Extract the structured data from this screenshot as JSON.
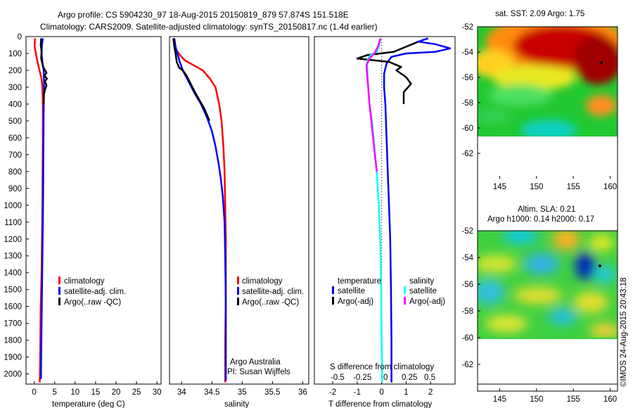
{
  "title_line1": "Argo profile: CS 5904230_97 18-Aug-2015 20150819_879 57.874S 151.518E",
  "title_line2": "Climatology: CARS2009. Satellite-adjusted climatology: synTS_20150817.nc (1.4d earlier)",
  "credit_lines": [
    "Argo Australia",
    "PI: Susan Wijffels"
  ],
  "watermark": "©IMOS 24-Aug-2015 20:43:18",
  "colors": {
    "climatology": "#ff0000",
    "satellite": "#0000ff",
    "argo": "#000000",
    "sat_salinity": "#00ffff",
    "argo_salinity": "#ff00ff"
  },
  "chart_data": [
    {
      "type": "line",
      "xlabel": "temperature (deg C)",
      "ylim": [
        2060,
        0
      ],
      "xlim": [
        -2,
        31
      ],
      "yticks": [
        0,
        100,
        200,
        300,
        400,
        500,
        600,
        700,
        800,
        900,
        1000,
        1100,
        1200,
        1300,
        1400,
        1500,
        1600,
        1700,
        1800,
        1900,
        2000
      ],
      "xticks": [
        0,
        5,
        10,
        15,
        20,
        25,
        30
      ],
      "legend": [
        "climatology",
        "satellite-adj. clim.",
        "Argo(..raw -QC)"
      ],
      "series": [
        {
          "name": "climatology",
          "color": "red",
          "points": [
            [
              0.2,
              10
            ],
            [
              0.1,
              60
            ],
            [
              0.4,
              100
            ],
            [
              0.8,
              150
            ],
            [
              1.3,
              200
            ],
            [
              1.8,
              250
            ],
            [
              2.0,
              300
            ],
            [
              2.1,
              400
            ],
            [
              2.1,
              600
            ],
            [
              2.05,
              800
            ],
            [
              2.0,
              1000
            ],
            [
              1.9,
              1200
            ],
            [
              1.8,
              1400
            ],
            [
              1.6,
              1600
            ],
            [
              1.5,
              1800
            ],
            [
              1.4,
              2000
            ],
            [
              1.35,
              2050
            ]
          ]
        },
        {
          "name": "satellite-adj. clim.",
          "color": "blue",
          "points": [
            [
              2.1,
              10
            ],
            [
              1.9,
              50
            ],
            [
              1.8,
              100
            ],
            [
              2.0,
              150
            ],
            [
              2.3,
              200
            ],
            [
              2.4,
              260
            ],
            [
              2.35,
              350
            ],
            [
              2.3,
              500
            ],
            [
              2.25,
              700
            ],
            [
              2.2,
              900
            ],
            [
              2.1,
              1100
            ],
            [
              2.0,
              1300
            ],
            [
              1.9,
              1500
            ],
            [
              1.8,
              1700
            ],
            [
              1.7,
              1900
            ],
            [
              1.65,
              2030
            ]
          ]
        },
        {
          "name": "Argo(..raw -QC)",
          "color": "black",
          "points": [
            [
              1.7,
              10
            ],
            [
              1.6,
              50
            ],
            [
              1.8,
              90
            ],
            [
              1.7,
              130
            ],
            [
              2.2,
              180
            ],
            [
              3.0,
              215
            ],
            [
              2.5,
              230
            ],
            [
              3.1,
              250
            ],
            [
              2.6,
              265
            ],
            [
              3.0,
              290
            ],
            [
              2.7,
              310
            ],
            [
              2.4,
              340
            ],
            [
              2.3,
              400
            ]
          ]
        }
      ]
    },
    {
      "type": "line",
      "xlabel": "salinity",
      "ylim": [
        2060,
        0
      ],
      "xlim": [
        33.8,
        36.1
      ],
      "xticks": [
        34,
        34.5,
        35,
        35.5,
        36
      ],
      "legend": [
        "climatology",
        "satellite-adj. clim.",
        "Argo(..raw -QC)"
      ],
      "series": [
        {
          "name": "climatology",
          "color": "red",
          "points": [
            [
              33.86,
              10
            ],
            [
              33.88,
              60
            ],
            [
              33.95,
              100
            ],
            [
              34.05,
              140
            ],
            [
              34.2,
              170
            ],
            [
              34.35,
              200
            ],
            [
              34.47,
              250
            ],
            [
              34.56,
              300
            ],
            [
              34.62,
              400
            ],
            [
              34.66,
              500
            ],
            [
              34.69,
              650
            ],
            [
              34.71,
              800
            ],
            [
              34.72,
              1000
            ],
            [
              34.73,
              1200
            ],
            [
              34.73,
              1500
            ],
            [
              34.72,
              1800
            ],
            [
              34.72,
              2050
            ]
          ]
        },
        {
          "name": "satellite-adj. clim.",
          "color": "blue",
          "points": [
            [
              33.88,
              10
            ],
            [
              33.9,
              60
            ],
            [
              33.93,
              100
            ],
            [
              33.97,
              150
            ],
            [
              34.02,
              200
            ],
            [
              34.12,
              270
            ],
            [
              34.22,
              340
            ],
            [
              34.32,
              400
            ],
            [
              34.42,
              480
            ],
            [
              34.5,
              560
            ],
            [
              34.56,
              650
            ],
            [
              34.61,
              750
            ],
            [
              34.65,
              850
            ],
            [
              34.68,
              950
            ],
            [
              34.71,
              1100
            ],
            [
              34.72,
              1300
            ],
            [
              34.73,
              1600
            ],
            [
              34.73,
              1900
            ],
            [
              34.73,
              2040
            ]
          ]
        },
        {
          "name": "Argo(..raw -QC)",
          "color": "black",
          "points": [
            [
              33.87,
              10
            ],
            [
              33.88,
              60
            ],
            [
              33.9,
              100
            ],
            [
              33.92,
              150
            ],
            [
              33.96,
              185
            ],
            [
              34.02,
              200
            ],
            [
              34.08,
              230
            ],
            [
              34.15,
              280
            ],
            [
              34.22,
              330
            ],
            [
              34.3,
              380
            ],
            [
              34.38,
              430
            ],
            [
              34.46,
              500
            ]
          ]
        }
      ]
    },
    {
      "type": "line",
      "xlabel": "T difference from climatology",
      "xlabel_top": "S difference from climatology",
      "ylim": [
        2060,
        0
      ],
      "xlim": [
        -2.75,
        3.0
      ],
      "xticks": [
        -2,
        -1,
        0,
        1,
        2
      ],
      "xticks_top": [
        "-0.5",
        "-0.25",
        "0",
        "0.25",
        "0.5"
      ],
      "legend_temperature": [
        "temperature",
        "satellite",
        "Argo(-adj)"
      ],
      "legend_salinity": [
        "salinity",
        "satellite",
        "Argo(-adj)"
      ],
      "series": [
        {
          "name": "satellite",
          "color": "blue",
          "points": [
            [
              1.9,
              10
            ],
            [
              1.5,
              30
            ],
            [
              2.2,
              45
            ],
            [
              2.8,
              70
            ],
            [
              2.2,
              90
            ],
            [
              1.0,
              100
            ],
            [
              0.4,
              120
            ],
            [
              0.2,
              160
            ],
            [
              0.1,
              220
            ],
            [
              0.1,
              300
            ],
            [
              0.15,
              400
            ],
            [
              0.2,
              600
            ],
            [
              0.25,
              800
            ],
            [
              0.3,
              1000
            ],
            [
              0.35,
              1200
            ],
            [
              0.38,
              1500
            ],
            [
              0.4,
              1800
            ],
            [
              0.4,
              2050
            ]
          ]
        },
        {
          "name": "Argo(-adj)",
          "color": "black",
          "points": [
            [
              1.5,
              30
            ],
            [
              0.5,
              90
            ],
            [
              -0.6,
              110
            ],
            [
              -1.0,
              130
            ],
            [
              0.3,
              150
            ],
            [
              0.8,
              180
            ],
            [
              0.6,
              200
            ],
            [
              1.0,
              240
            ],
            [
              1.2,
              280
            ],
            [
              0.9,
              330
            ],
            [
              0.9,
              400
            ]
          ]
        },
        {
          "name": "satellite",
          "color": "cyan",
          "points": [
            [
              -0.05,
              10
            ],
            [
              -0.1,
              50
            ],
            [
              -0.2,
              90
            ],
            [
              -0.45,
              110
            ],
            [
              -0.55,
              130
            ],
            [
              -0.6,
              160
            ],
            [
              -0.58,
              220
            ],
            [
              -0.55,
              300
            ],
            [
              -0.5,
              400
            ],
            [
              -0.4,
              500
            ],
            [
              -0.3,
              650
            ],
            [
              -0.2,
              800
            ],
            [
              -0.12,
              1000
            ],
            [
              -0.06,
              1200
            ],
            [
              -0.02,
              1500
            ],
            [
              0.0,
              1800
            ],
            [
              0.02,
              2050
            ]
          ]
        },
        {
          "name": "Argo(-adj)",
          "color": "magenta",
          "points": [
            [
              -0.05,
              10
            ],
            [
              -0.15,
              60
            ],
            [
              -0.3,
              100
            ],
            [
              -0.5,
              130
            ],
            [
              -0.62,
              170
            ],
            [
              -0.6,
              220
            ],
            [
              -0.55,
              300
            ],
            [
              -0.5,
              400
            ],
            [
              -0.42,
              500
            ],
            [
              -0.35,
              600
            ],
            [
              -0.28,
              700
            ],
            [
              -0.2,
              800
            ]
          ]
        }
      ]
    },
    {
      "type": "heatmap",
      "title": "sat. SST: 2.09 Argo: 1.75",
      "ylim": [
        -64,
        -52
      ],
      "xlim": [
        142,
        161
      ],
      "yticks": [
        -52,
        -54,
        -56,
        -58,
        -60,
        -62
      ],
      "xticks": [
        145,
        150,
        155,
        160
      ]
    },
    {
      "type": "heatmap",
      "title_line1": "Altim. SLA: 0.21",
      "title_line2": "Argo h1000: 0.14 h2000: 0.17",
      "ylim": [
        -64,
        -52
      ],
      "xlim": [
        142,
        161
      ],
      "yticks": [
        -52,
        -54,
        -56,
        -58,
        -60,
        -62
      ],
      "xticks": [
        145,
        150,
        155,
        160
      ]
    }
  ]
}
